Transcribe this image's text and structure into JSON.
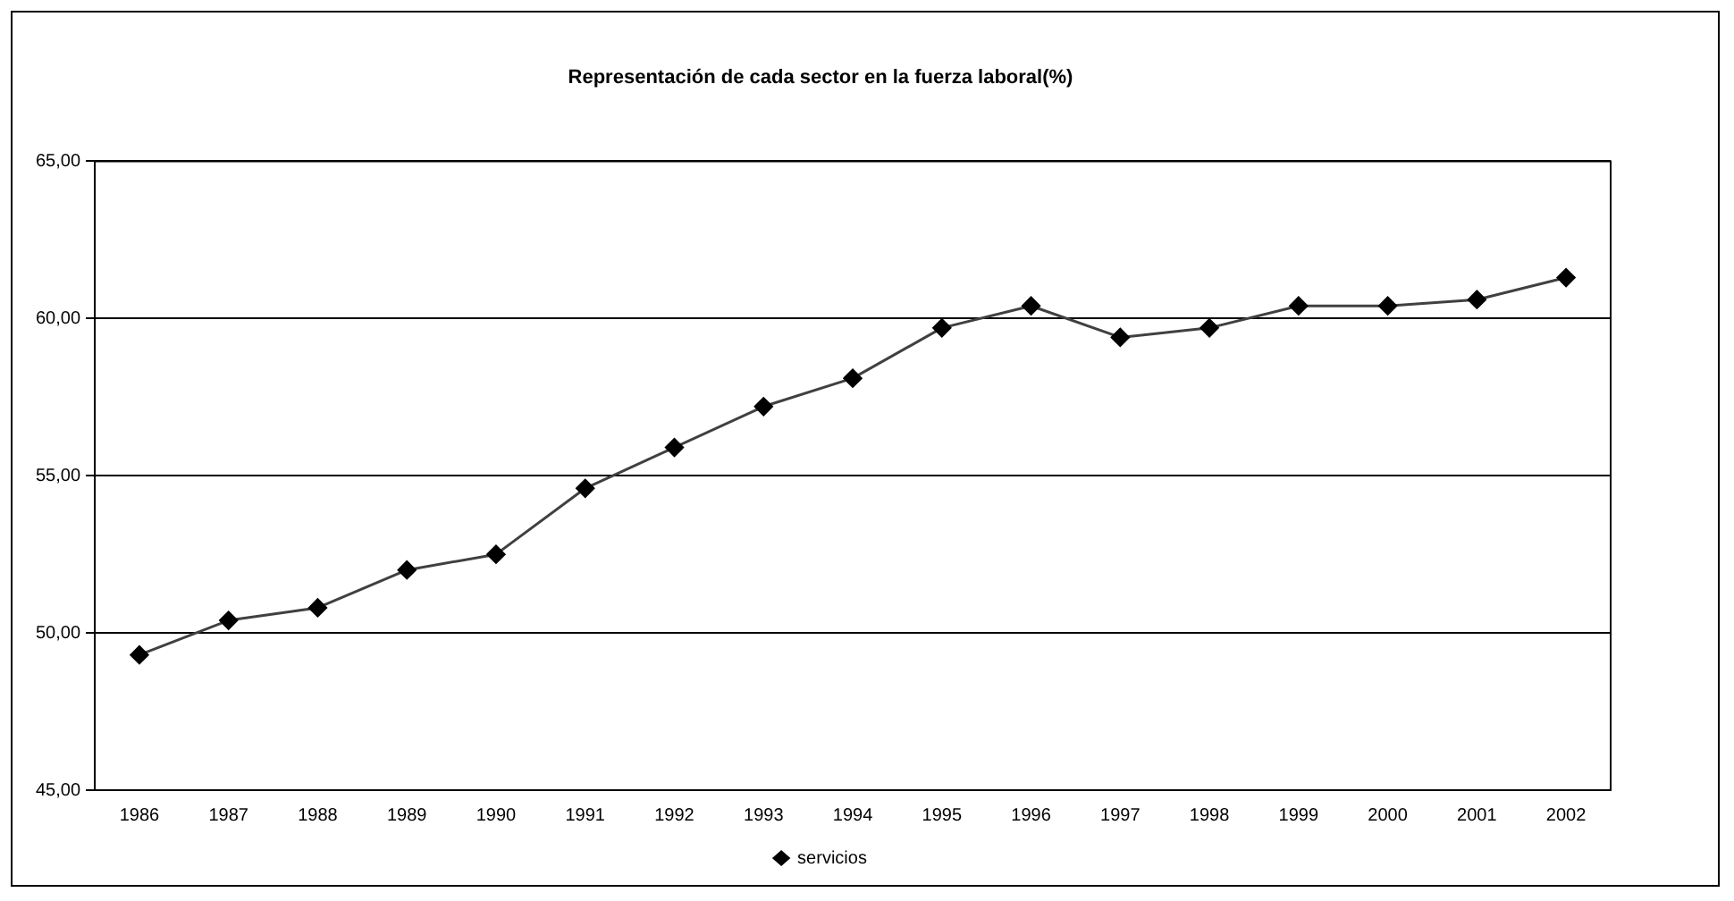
{
  "chart_data": {
    "type": "line",
    "title": "Representación de cada sector en la fuerza laboral(%)",
    "categories": [
      "1986",
      "1987",
      "1988",
      "1989",
      "1990",
      "1991",
      "1992",
      "1993",
      "1994",
      "1995",
      "1996",
      "1997",
      "1998",
      "1999",
      "2000",
      "2001",
      "2002"
    ],
    "series": [
      {
        "name": "servicios",
        "color": "#404040",
        "values": [
          49.3,
          50.4,
          50.8,
          52.0,
          52.5,
          54.6,
          55.9,
          57.2,
          58.1,
          59.7,
          60.4,
          59.4,
          59.7,
          60.4,
          60.4,
          60.6,
          61.3
        ]
      }
    ],
    "ylim": [
      45,
      65
    ],
    "yticks": [
      {
        "value": 45,
        "label": "45,00"
      },
      {
        "value": 50,
        "label": "50,00"
      },
      {
        "value": 55,
        "label": "55,00"
      },
      {
        "value": 60,
        "label": "60,00"
      },
      {
        "value": 65,
        "label": "65,00"
      }
    ],
    "grid": "y",
    "legend": "bottom",
    "marker": "diamond",
    "line_style": "solid"
  }
}
